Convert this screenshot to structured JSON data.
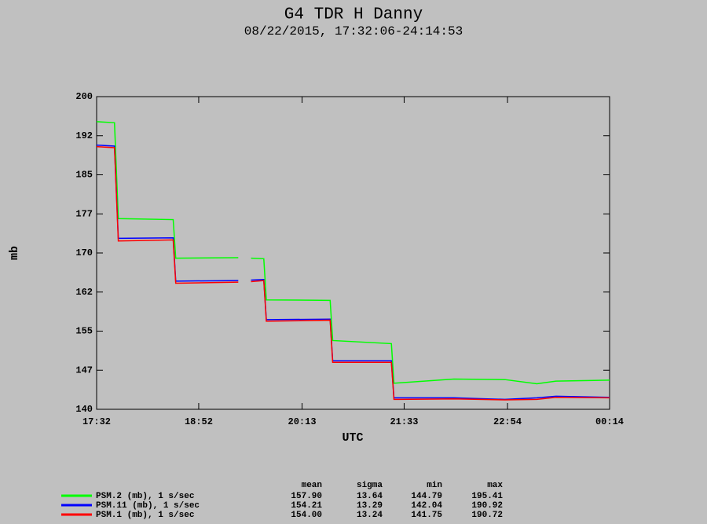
{
  "chart_data": {
    "type": "line",
    "title": "G4 TDR H Danny",
    "subtitle": "08/22/2015, 17:32:06-24:14:53",
    "xlabel": "UTC",
    "ylabel": "mb",
    "x": [
      1052,
      1066,
      1069,
      1112,
      1114,
      1163,
      1168,
      1173,
      1183,
      1185,
      1235,
      1237,
      1283,
      1285,
      1332,
      1372,
      1397,
      1412,
      1454
    ],
    "xlim": [
      1052,
      1454
    ],
    "xticks": [
      {
        "value": 1052,
        "label": "17:32"
      },
      {
        "value": 1132,
        "label": "18:52"
      },
      {
        "value": 1213,
        "label": "20:13"
      },
      {
        "value": 1293,
        "label": "21:33"
      },
      {
        "value": 1374,
        "label": "22:54"
      },
      {
        "value": 1454,
        "label": "00:14"
      }
    ],
    "ylim": [
      140,
      200
    ],
    "yticks": [
      140,
      {
        "value": 147.5,
        "label": "147"
      },
      155,
      {
        "value": 162.5,
        "label": "162"
      },
      170,
      {
        "value": 177.5,
        "label": "177"
      },
      185,
      {
        "value": 192.5,
        "label": "192"
      },
      200
    ],
    "series": [
      {
        "name": "PSM.2 (mb), 1 s/sec",
        "color": "#00ff00",
        "values": [
          195.2,
          195,
          176.6,
          176.4,
          169,
          169.1,
          null,
          169,
          168.9,
          161,
          160.9,
          153.2,
          152.6,
          145,
          145.8,
          145.7,
          144.9,
          145.4,
          145.6
        ]
      },
      {
        "name": "PSM.11 (mb), 1 s/sec",
        "color": "#0000ff",
        "values": [
          190.7,
          190.5,
          172.8,
          172.9,
          164.6,
          164.7,
          null,
          164.8,
          164.9,
          157.2,
          157.3,
          149.3,
          149.3,
          142.2,
          142.2,
          141.9,
          142.2,
          142.5,
          142.3
        ]
      },
      {
        "name": "PSM.1 (mb), 1 s/sec",
        "color": "#ff0000",
        "values": [
          190.4,
          190.2,
          172.3,
          172.5,
          164.2,
          164.4,
          null,
          164.5,
          164.7,
          156.9,
          157.1,
          149.0,
          149.0,
          141.9,
          142.0,
          141.8,
          141.9,
          142.3,
          142.2
        ]
      }
    ],
    "stats_table": {
      "columns": [
        "mean",
        "sigma",
        "min",
        "max"
      ],
      "rows": [
        [
          "157.90",
          "13.64",
          "144.79",
          "195.41"
        ],
        [
          "154.21",
          "13.29",
          "142.04",
          "190.92"
        ],
        [
          "154.00",
          "13.24",
          "141.75",
          "190.72"
        ]
      ]
    }
  }
}
